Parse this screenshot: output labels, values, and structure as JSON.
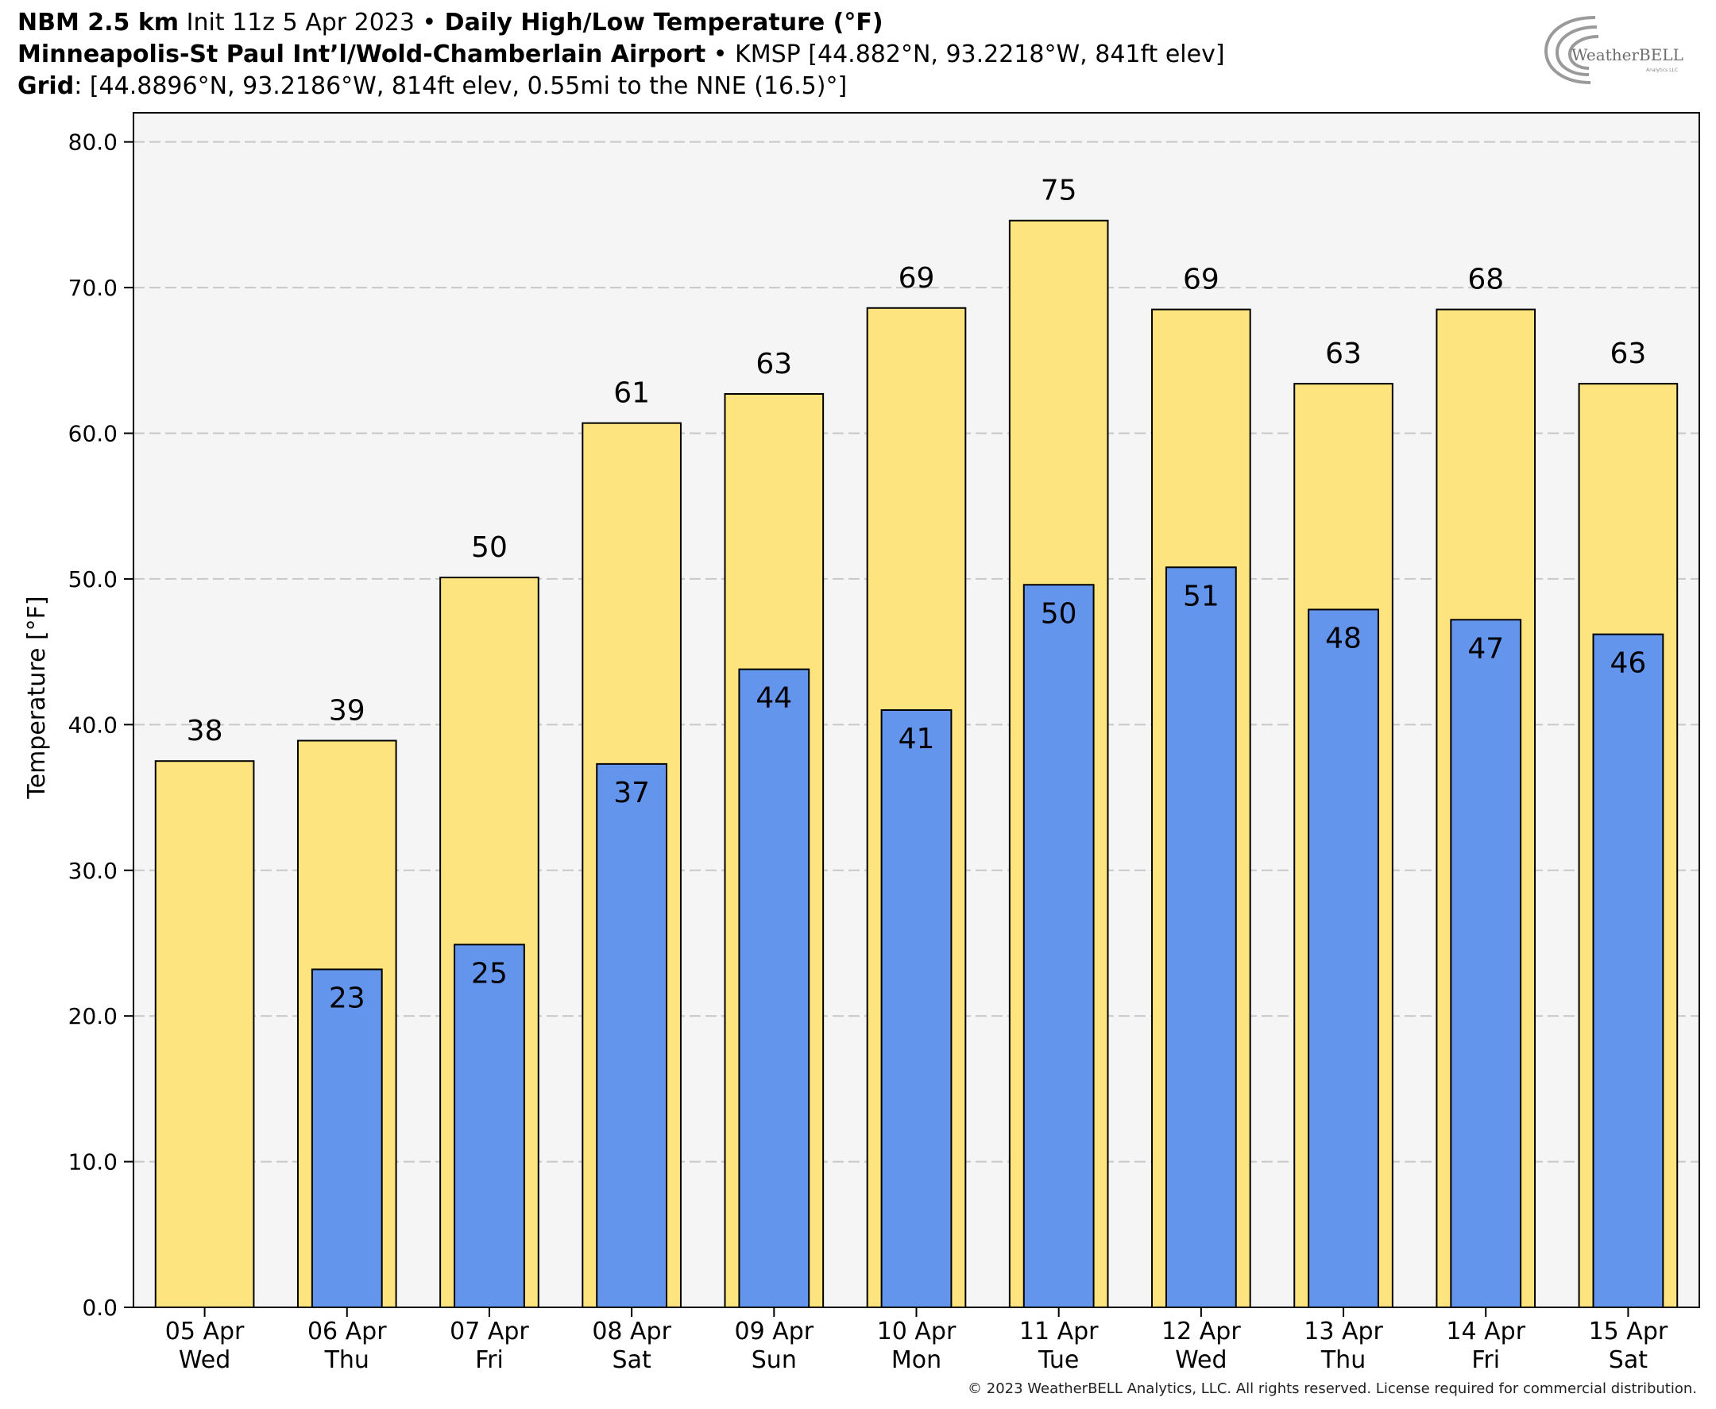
{
  "header": {
    "line1": {
      "model": "NBM 2.5 km",
      "init": " Init 11z 5 Apr 2023 ",
      "bullet": "•",
      "product": " Daily High/Low Temperature (°F)"
    },
    "line2": {
      "station": "Minneapolis-St Paul Int’l/Wold-Chamberlain Airport",
      "bullet": " • ",
      "info": "KMSP [44.882°N, 93.2218°W, 841ft elev]"
    },
    "line3": {
      "label": "Grid",
      "info": ": [44.8896°N, 93.2186°W, 814ft elev, 0.55mi to the NNE (16.5)°]"
    }
  },
  "logo": {
    "text": "WeatherBELL",
    "sub": "Analytics LLC"
  },
  "footer": {
    "text": "© 2023 WeatherBELL Analytics, LLC. All rights reserved. License required for commercial distribution."
  },
  "chart_data": {
    "type": "bar",
    "title": "Daily High/Low Temperature (°F)",
    "ylabel": "Temperature [°F]",
    "ylim": [
      0,
      80
    ],
    "yticks": [
      "0.0",
      "10.0",
      "20.0",
      "30.0",
      "40.0",
      "50.0",
      "60.0",
      "70.0",
      "80.0"
    ],
    "grid": true,
    "categories": [
      {
        "date": "05 Apr",
        "day": "Wed"
      },
      {
        "date": "06 Apr",
        "day": "Thu"
      },
      {
        "date": "07 Apr",
        "day": "Fri"
      },
      {
        "date": "08 Apr",
        "day": "Sat"
      },
      {
        "date": "09 Apr",
        "day": "Sun"
      },
      {
        "date": "10 Apr",
        "day": "Mon"
      },
      {
        "date": "11 Apr",
        "day": "Tue"
      },
      {
        "date": "12 Apr",
        "day": "Wed"
      },
      {
        "date": "13 Apr",
        "day": "Thu"
      },
      {
        "date": "14 Apr",
        "day": "Fri"
      },
      {
        "date": "15 Apr",
        "day": "Sat"
      }
    ],
    "series": [
      {
        "key": "high",
        "color": "#fde47f",
        "values": [
          37.5,
          38.9,
          50.1,
          60.7,
          62.7,
          68.6,
          74.6,
          68.5,
          63.4,
          68.5,
          63.4
        ],
        "labels": [
          "38",
          "39",
          "50",
          "61",
          "63",
          "69",
          "75",
          "69",
          "63",
          "68",
          "63"
        ]
      },
      {
        "key": "low",
        "color": "#6495ed",
        "values": [
          null,
          23.2,
          24.9,
          37.3,
          43.8,
          41.0,
          49.6,
          50.8,
          47.9,
          47.2,
          46.2
        ],
        "labels": [
          null,
          "23",
          "25",
          "37",
          "44",
          "41",
          "50",
          "51",
          "48",
          "47",
          "46"
        ]
      }
    ]
  }
}
